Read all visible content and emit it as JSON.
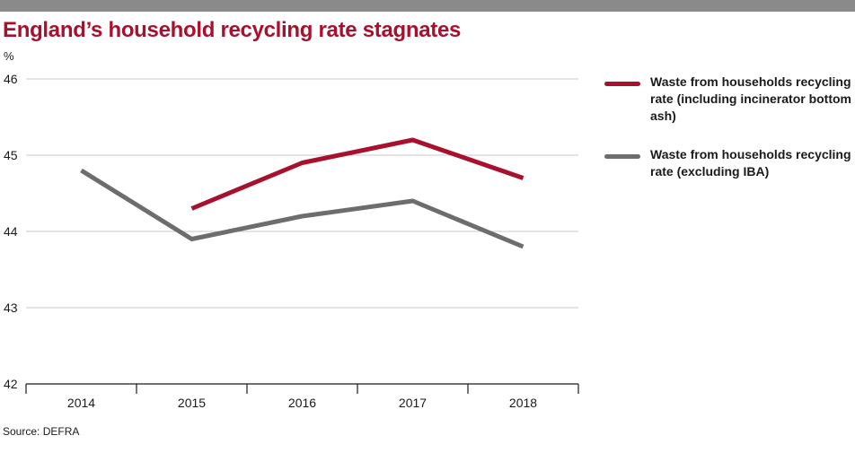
{
  "title": "England’s household recycling rate stagnates",
  "unit_label": "%",
  "source": "Source: DEFRA",
  "colors": {
    "header_bar": "#8a8a8a",
    "title": "#a8102e"
  },
  "chart_data": {
    "type": "line",
    "title": "England’s household recycling rate stagnates",
    "xlabel": "",
    "ylabel": "%",
    "categories": [
      "2014",
      "2015",
      "2016",
      "2017",
      "2018"
    ],
    "ylim": [
      42,
      46
    ],
    "yticks": [
      42,
      43,
      44,
      45,
      46
    ],
    "grid": true,
    "legend_position": "right",
    "series": [
      {
        "name": "Waste from households recycling rate (including incinerator bottom ash)",
        "color": "#a8102e",
        "values": [
          null,
          44.3,
          44.9,
          45.2,
          44.7
        ]
      },
      {
        "name": "Waste from households recycling rate (excluding IBA)",
        "color": "#6d6d6d",
        "values": [
          44.8,
          43.9,
          44.2,
          44.4,
          43.8
        ]
      }
    ]
  }
}
